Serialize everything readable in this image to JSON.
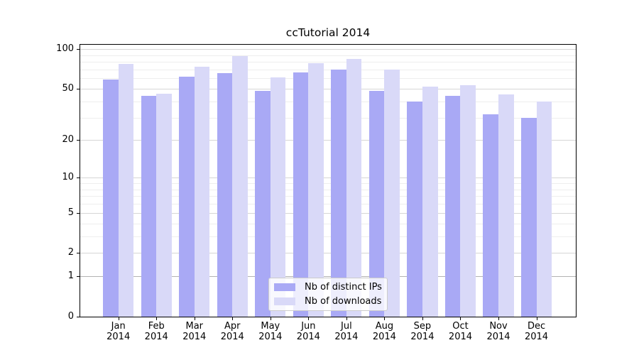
{
  "title": "ccTutorial 2014",
  "legend": {
    "items": [
      {
        "label": "Nb of distinct IPs"
      },
      {
        "label": "Nb of downloads"
      }
    ]
  },
  "chart_data": {
    "type": "bar",
    "title": "ccTutorial 2014",
    "categories": [
      "Jan 2014",
      "Feb 2014",
      "Mar 2014",
      "Apr 2014",
      "May 2014",
      "Jun 2014",
      "Jul 2014",
      "Aug 2014",
      "Sep 2014",
      "Oct 2014",
      "Nov 2014",
      "Dec 2014"
    ],
    "series": [
      {
        "name": "Nb of distinct IPs",
        "color": "#a9a9f5",
        "values": [
          59,
          44,
          62,
          66,
          48,
          67,
          70,
          48,
          40,
          44,
          32,
          30
        ]
      },
      {
        "name": "Nb of downloads",
        "color": "#d9d9f8",
        "values": [
          77,
          46,
          74,
          89,
          61,
          78,
          84,
          70,
          52,
          53,
          45,
          40
        ]
      }
    ],
    "xlabel": "",
    "ylabel": "",
    "yscale": "symlog (position proportional to log(1+value))",
    "ylim": [
      0,
      108
    ],
    "yticks": [
      0,
      1,
      2,
      5,
      10,
      20,
      50,
      100
    ],
    "yticks_minor": [
      3,
      4,
      6,
      7,
      8,
      9,
      30,
      40,
      60,
      70,
      80,
      90
    ],
    "grid": "horizontal major and minor gridlines",
    "legend_position": "lower center"
  },
  "colors": {
    "bar_series1": "#a9a9f5",
    "bar_series2": "#d9d9f8",
    "grid_major": "#d6d6d6",
    "grid_major_at_1": "#b3b3b3",
    "grid_minor": "#eeeeee",
    "axis": "#000000",
    "legend_border": "#cccccc",
    "legend_bg": "rgba(255,255,255,0.8)",
    "background": "#ffffff"
  }
}
